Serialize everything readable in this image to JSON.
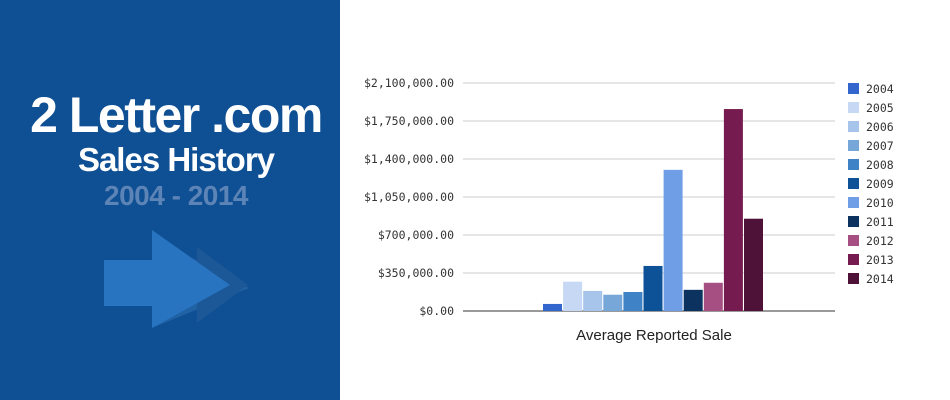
{
  "banner": {
    "title_line1": "2 Letter .com",
    "title_line2": "Sales History",
    "title_line3": "2004 - 2014",
    "arrow_icon": "double-arrow-right-icon"
  },
  "chart_data": {
    "type": "bar",
    "xlabel": "Average Reported Sale",
    "ylabel": "",
    "ylim": [
      0,
      2100000
    ],
    "yticks": [
      0,
      350000,
      700000,
      1050000,
      1400000,
      1750000,
      2100000
    ],
    "ytick_labels": [
      "$0.00",
      "$350,000.00",
      "$700,000.00",
      "$1,050,000.00",
      "$1,400,000.00",
      "$1,750,000.00",
      "$2,100,000.00"
    ],
    "grid": true,
    "legend_position": "right",
    "categories": [
      "Average Reported Sale"
    ],
    "series": [
      {
        "name": "2004",
        "color": "#3366cc",
        "values": [
          65000
        ]
      },
      {
        "name": "2005",
        "color": "#c6d8f4",
        "values": [
          270000
        ]
      },
      {
        "name": "2006",
        "color": "#a7c4ea",
        "values": [
          185000
        ]
      },
      {
        "name": "2007",
        "color": "#76a7d8",
        "values": [
          150000
        ]
      },
      {
        "name": "2008",
        "color": "#3f82c5",
        "values": [
          175000
        ]
      },
      {
        "name": "2009",
        "color": "#0d5296",
        "values": [
          415000
        ]
      },
      {
        "name": "2010",
        "color": "#709ee6",
        "values": [
          1300000
        ]
      },
      {
        "name": "2011",
        "color": "#0c3360",
        "values": [
          195000
        ]
      },
      {
        "name": "2012",
        "color": "#a64f82",
        "values": [
          260000
        ]
      },
      {
        "name": "2013",
        "color": "#761b4f",
        "values": [
          1860000
        ]
      },
      {
        "name": "2014",
        "color": "#4e1137",
        "values": [
          850000
        ]
      }
    ]
  }
}
